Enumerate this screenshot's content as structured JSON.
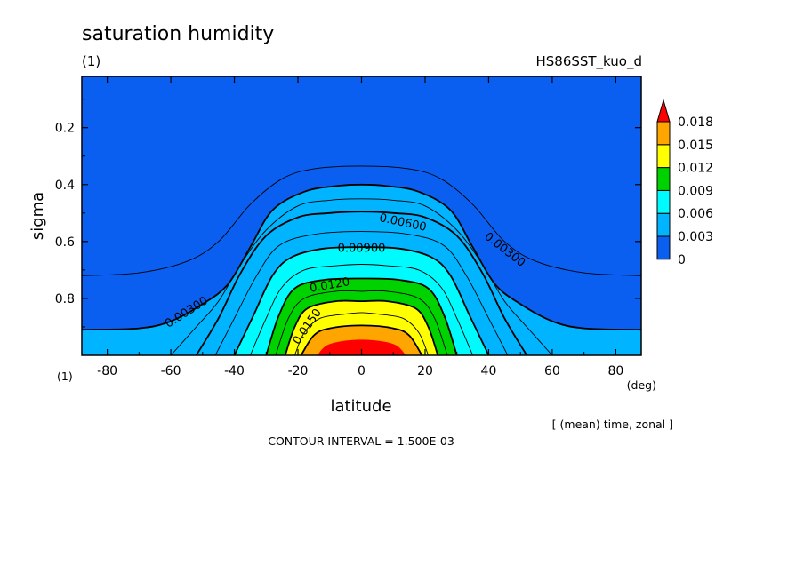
{
  "chart_data": {
    "type": "contour",
    "title": "saturation humidity",
    "subtitle_left": "(1)",
    "subtitle_right": "HS86SST_kuo_d",
    "xlabel": "latitude",
    "x_unit": "(deg)",
    "x_corner_label": "(1)",
    "ylabel": "sigma",
    "xlim": [
      -88,
      88
    ],
    "ylim": [
      0.02,
      1.0
    ],
    "y_inverted": true,
    "x_ticks": [
      "-80",
      "-60",
      "-40",
      "-20",
      "0",
      "20",
      "40",
      "60",
      "80"
    ],
    "y_ticks": [
      "0.2",
      "0.4",
      "0.6",
      "0.8"
    ],
    "averaging_note": "[ (mean) time, zonal ]",
    "contour_interval_note": "CONTOUR INTERVAL = 1.500E-03",
    "contour_levels": [
      0.0015,
      0.003,
      0.0045,
      0.006,
      0.0075,
      0.009,
      0.0105,
      0.012,
      0.0135,
      0.015,
      0.0165,
      0.018
    ],
    "contour_labels": [
      {
        "text": "0.00300",
        "lat": -55,
        "sigma": 0.85
      },
      {
        "text": "0.00300",
        "lat": 45,
        "sigma": 0.63
      },
      {
        "text": "0.00600",
        "lat": 13,
        "sigma": 0.535
      },
      {
        "text": "0.00900",
        "lat": 0,
        "sigma": 0.625
      },
      {
        "text": "0.0120",
        "lat": -10,
        "sigma": 0.755
      },
      {
        "text": "0.0150",
        "lat": -17,
        "sigma": 0.9
      }
    ],
    "colorbar": {
      "labels": [
        "0",
        "0.003",
        "0.006",
        "0.009",
        "0.012",
        "0.015",
        "0.018"
      ],
      "band_colors": [
        "#0a5ff0",
        "#00b4ff",
        "#00fbff",
        "#00d200",
        "#ffff00",
        "#ffa500",
        "#ff0000"
      ],
      "extend": "max"
    },
    "field_bands": [
      {
        "color": "#0a5ff0",
        "boundary": [
          [
            -88,
            0.91
          ],
          [
            -70,
            0.905
          ],
          [
            -60,
            0.88
          ],
          [
            -50,
            0.82
          ],
          [
            -42,
            0.75
          ],
          [
            -35,
            0.62
          ],
          [
            -28,
            0.49
          ],
          [
            -18,
            0.425
          ],
          [
            -8,
            0.405
          ],
          [
            0,
            0.4
          ],
          [
            8,
            0.405
          ],
          [
            18,
            0.425
          ],
          [
            28,
            0.49
          ],
          [
            35,
            0.62
          ],
          [
            42,
            0.75
          ],
          [
            50,
            0.82
          ],
          [
            60,
            0.88
          ],
          [
            70,
            0.905
          ],
          [
            88,
            0.91
          ]
        ]
      },
      {
        "color": "#00b4ff",
        "boundary": [
          [
            -52,
            1.0
          ],
          [
            -45,
            0.87
          ],
          [
            -38,
            0.71
          ],
          [
            -30,
            0.58
          ],
          [
            -20,
            0.515
          ],
          [
            -10,
            0.5
          ],
          [
            0,
            0.495
          ],
          [
            10,
            0.5
          ],
          [
            20,
            0.515
          ],
          [
            30,
            0.58
          ],
          [
            38,
            0.71
          ],
          [
            45,
            0.87
          ],
          [
            52,
            1.0
          ]
        ]
      },
      {
        "color": "#00fbff",
        "boundary": [
          [
            -40,
            1.0
          ],
          [
            -34,
            0.86
          ],
          [
            -28,
            0.72
          ],
          [
            -22,
            0.655
          ],
          [
            -12,
            0.625
          ],
          [
            0,
            0.62
          ],
          [
            12,
            0.625
          ],
          [
            22,
            0.655
          ],
          [
            28,
            0.72
          ],
          [
            34,
            0.86
          ],
          [
            40,
            1.0
          ]
        ]
      },
      {
        "color": "#00d200",
        "boundary": [
          [
            -30,
            1.0
          ],
          [
            -26,
            0.86
          ],
          [
            -21,
            0.765
          ],
          [
            -12,
            0.735
          ],
          [
            0,
            0.73
          ],
          [
            12,
            0.735
          ],
          [
            21,
            0.765
          ],
          [
            26,
            0.86
          ],
          [
            30,
            1.0
          ]
        ]
      },
      {
        "color": "#ffff00",
        "boundary": [
          [
            -24,
            1.0
          ],
          [
            -21,
            0.9
          ],
          [
            -17,
            0.835
          ],
          [
            -8,
            0.81
          ],
          [
            0,
            0.81
          ],
          [
            8,
            0.81
          ],
          [
            17,
            0.835
          ],
          [
            21,
            0.9
          ],
          [
            24,
            1.0
          ]
        ]
      },
      {
        "color": "#ffa500",
        "boundary": [
          [
            -19,
            1.0
          ],
          [
            -15,
            0.93
          ],
          [
            -10,
            0.905
          ],
          [
            0,
            0.895
          ],
          [
            10,
            0.905
          ],
          [
            15,
            0.93
          ],
          [
            19,
            1.0
          ]
        ]
      },
      {
        "color": "#ff0000",
        "boundary": [
          [
            -14,
            1.0
          ],
          [
            -10,
            0.96
          ],
          [
            0,
            0.945
          ],
          [
            10,
            0.96
          ],
          [
            14,
            1.0
          ]
        ]
      }
    ],
    "contour_lines": [
      {
        "level": 0.0015,
        "major": false,
        "points": [
          [
            -88,
            0.72
          ],
          [
            -70,
            0.71
          ],
          [
            -55,
            0.67
          ],
          [
            -45,
            0.6
          ],
          [
            -35,
            0.47
          ],
          [
            -25,
            0.38
          ],
          [
            -15,
            0.345
          ],
          [
            0,
            0.335
          ],
          [
            15,
            0.345
          ],
          [
            25,
            0.38
          ],
          [
            35,
            0.47
          ],
          [
            45,
            0.6
          ],
          [
            55,
            0.67
          ],
          [
            70,
            0.71
          ],
          [
            88,
            0.72
          ]
        ]
      },
      {
        "level": 0.003,
        "major": true,
        "points": [
          [
            -88,
            0.91
          ],
          [
            -70,
            0.905
          ],
          [
            -60,
            0.88
          ],
          [
            -50,
            0.82
          ],
          [
            -42,
            0.75
          ],
          [
            -35,
            0.62
          ],
          [
            -28,
            0.49
          ],
          [
            -18,
            0.425
          ],
          [
            -8,
            0.405
          ],
          [
            0,
            0.4
          ],
          [
            8,
            0.405
          ],
          [
            18,
            0.425
          ],
          [
            28,
            0.49
          ],
          [
            35,
            0.62
          ],
          [
            42,
            0.75
          ],
          [
            50,
            0.82
          ],
          [
            60,
            0.88
          ],
          [
            70,
            0.905
          ],
          [
            88,
            0.91
          ]
        ]
      },
      {
        "level": 0.0045,
        "major": false,
        "points": [
          [
            -60,
            1.0
          ],
          [
            -52,
            0.9
          ],
          [
            -45,
            0.81
          ],
          [
            -38,
            0.68
          ],
          [
            -30,
            0.56
          ],
          [
            -20,
            0.475
          ],
          [
            -10,
            0.455
          ],
          [
            0,
            0.45
          ],
          [
            10,
            0.455
          ],
          [
            20,
            0.475
          ],
          [
            30,
            0.56
          ],
          [
            38,
            0.68
          ],
          [
            45,
            0.81
          ],
          [
            52,
            0.9
          ],
          [
            60,
            1.0
          ]
        ]
      },
      {
        "level": 0.006,
        "major": true,
        "points": [
          [
            -52,
            1.0
          ],
          [
            -45,
            0.87
          ],
          [
            -38,
            0.71
          ],
          [
            -30,
            0.58
          ],
          [
            -20,
            0.515
          ],
          [
            -10,
            0.5
          ],
          [
            0,
            0.495
          ],
          [
            10,
            0.5
          ],
          [
            20,
            0.515
          ],
          [
            30,
            0.58
          ],
          [
            38,
            0.71
          ],
          [
            45,
            0.87
          ],
          [
            52,
            1.0
          ]
        ]
      },
      {
        "level": 0.0075,
        "major": false,
        "points": [
          [
            -46,
            1.0
          ],
          [
            -40,
            0.87
          ],
          [
            -33,
            0.72
          ],
          [
            -26,
            0.615
          ],
          [
            -15,
            0.575
          ],
          [
            0,
            0.565
          ],
          [
            15,
            0.575
          ],
          [
            26,
            0.615
          ],
          [
            33,
            0.72
          ],
          [
            40,
            0.87
          ],
          [
            46,
            1.0
          ]
        ]
      },
      {
        "level": 0.009,
        "major": true,
        "points": [
          [
            -40,
            1.0
          ],
          [
            -34,
            0.86
          ],
          [
            -28,
            0.72
          ],
          [
            -22,
            0.655
          ],
          [
            -12,
            0.625
          ],
          [
            0,
            0.62
          ],
          [
            12,
            0.625
          ],
          [
            22,
            0.655
          ],
          [
            28,
            0.72
          ],
          [
            34,
            0.86
          ],
          [
            40,
            1.0
          ]
        ]
      },
      {
        "level": 0.0105,
        "major": false,
        "points": [
          [
            -35,
            1.0
          ],
          [
            -30,
            0.87
          ],
          [
            -25,
            0.76
          ],
          [
            -18,
            0.7
          ],
          [
            -8,
            0.685
          ],
          [
            0,
            0.68
          ],
          [
            8,
            0.685
          ],
          [
            18,
            0.7
          ],
          [
            25,
            0.76
          ],
          [
            30,
            0.87
          ],
          [
            35,
            1.0
          ]
        ]
      },
      {
        "level": 0.012,
        "major": true,
        "points": [
          [
            -30,
            1.0
          ],
          [
            -26,
            0.86
          ],
          [
            -21,
            0.765
          ],
          [
            -12,
            0.735
          ],
          [
            0,
            0.73
          ],
          [
            12,
            0.735
          ],
          [
            21,
            0.765
          ],
          [
            26,
            0.86
          ],
          [
            30,
            1.0
          ]
        ]
      },
      {
        "level": 0.0135,
        "major": false,
        "points": [
          [
            -27,
            1.0
          ],
          [
            -23,
            0.87
          ],
          [
            -18,
            0.8
          ],
          [
            -8,
            0.775
          ],
          [
            0,
            0.775
          ],
          [
            8,
            0.775
          ],
          [
            18,
            0.8
          ],
          [
            23,
            0.87
          ],
          [
            27,
            1.0
          ]
        ]
      },
      {
        "level": 0.015,
        "major": true,
        "points": [
          [
            -24,
            1.0
          ],
          [
            -21,
            0.9
          ],
          [
            -17,
            0.835
          ],
          [
            -8,
            0.81
          ],
          [
            0,
            0.81
          ],
          [
            8,
            0.81
          ],
          [
            17,
            0.835
          ],
          [
            21,
            0.9
          ],
          [
            24,
            1.0
          ]
        ]
      },
      {
        "level": 0.0165,
        "major": false,
        "points": [
          [
            -21,
            1.0
          ],
          [
            -18,
            0.92
          ],
          [
            -13,
            0.87
          ],
          [
            -5,
            0.855
          ],
          [
            0,
            0.85
          ],
          [
            5,
            0.855
          ],
          [
            13,
            0.87
          ],
          [
            18,
            0.92
          ],
          [
            21,
            1.0
          ]
        ]
      },
      {
        "level": 0.018,
        "major": true,
        "points": [
          [
            -19,
            1.0
          ],
          [
            -15,
            0.93
          ],
          [
            -10,
            0.905
          ],
          [
            0,
            0.895
          ],
          [
            10,
            0.905
          ],
          [
            15,
            0.93
          ],
          [
            19,
            1.0
          ]
        ]
      }
    ]
  }
}
